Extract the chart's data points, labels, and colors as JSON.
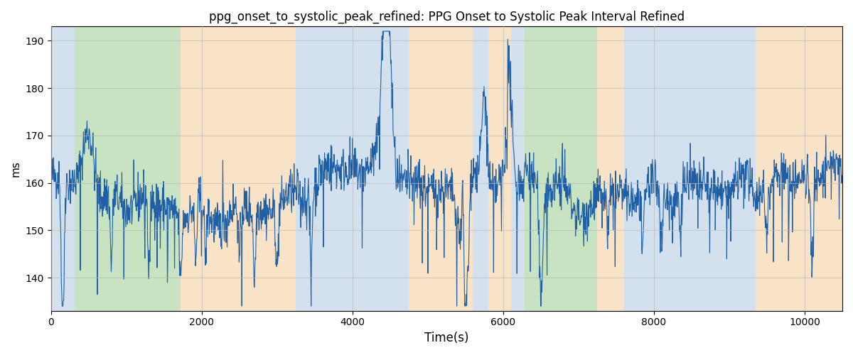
{
  "title": "ppg_onset_to_systolic_peak_refined: PPG Onset to Systolic Peak Interval Refined",
  "xlabel": "Time(s)",
  "ylabel": "ms",
  "xlim": [
    0,
    10500
  ],
  "ylim": [
    133,
    193
  ],
  "yticks": [
    140,
    150,
    160,
    170,
    180,
    190
  ],
  "xticks": [
    0,
    2000,
    4000,
    6000,
    8000,
    10000
  ],
  "line_color": "#1f5fa6",
  "line_width": 0.8,
  "background_color": "#ffffff",
  "grid_color": "#b8b8b8",
  "bands": [
    {
      "xmin": 0,
      "xmax": 310,
      "color": "#a8c4e0",
      "alpha": 0.5
    },
    {
      "xmin": 310,
      "xmax": 1720,
      "color": "#90c987",
      "alpha": 0.5
    },
    {
      "xmin": 1720,
      "xmax": 3250,
      "color": "#f5c990",
      "alpha": 0.5
    },
    {
      "xmin": 3250,
      "xmax": 4750,
      "color": "#a8c4e0",
      "alpha": 0.5
    },
    {
      "xmin": 4750,
      "xmax": 5600,
      "color": "#f5c990",
      "alpha": 0.5
    },
    {
      "xmin": 5600,
      "xmax": 5800,
      "color": "#a8c4e0",
      "alpha": 0.5
    },
    {
      "xmin": 5800,
      "xmax": 6100,
      "color": "#f5c990",
      "alpha": 0.5
    },
    {
      "xmin": 6100,
      "xmax": 6280,
      "color": "#a8c4e0",
      "alpha": 0.5
    },
    {
      "xmin": 6280,
      "xmax": 7250,
      "color": "#90c987",
      "alpha": 0.5
    },
    {
      "xmin": 7250,
      "xmax": 7600,
      "color": "#f5c990",
      "alpha": 0.5
    },
    {
      "xmin": 7600,
      "xmax": 9350,
      "color": "#a8c4e0",
      "alpha": 0.5
    },
    {
      "xmin": 9350,
      "xmax": 10600,
      "color": "#f5c990",
      "alpha": 0.5
    }
  ]
}
